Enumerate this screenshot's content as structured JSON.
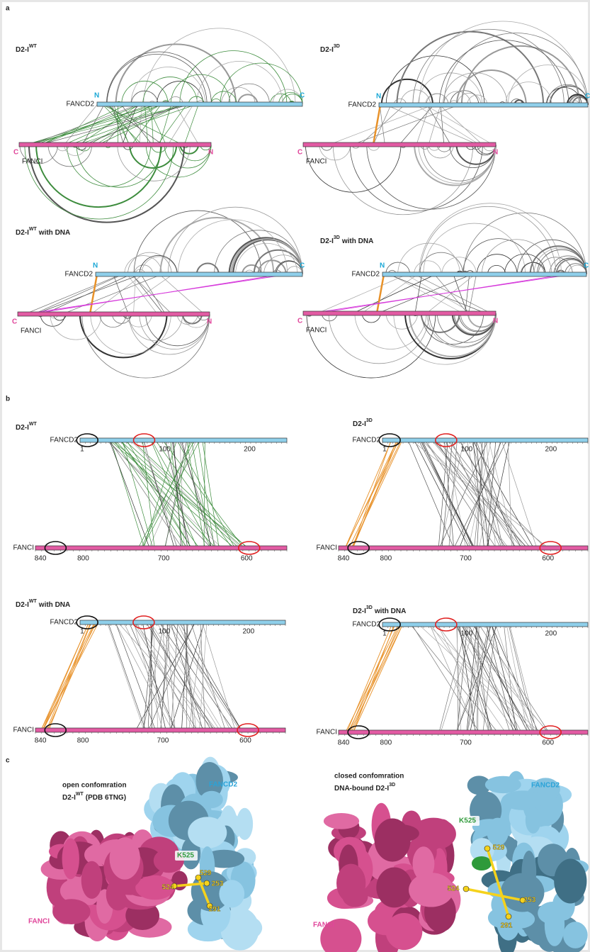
{
  "panel_labels": [
    "a",
    "b",
    "c"
  ],
  "panel_a": [
    {
      "title": "D2-I",
      "title_sup": "WT",
      "fancd2": "FANCD2",
      "fanci": "FANCI",
      "d2_n": "N",
      "d2_c": "C",
      "fi_c": "C",
      "fi_n": "N"
    },
    {
      "title": "D2-I",
      "title_sup": "3D",
      "fancd2": "FANCD2",
      "fanci": "FANCI",
      "d2_n": "N",
      "d2_c": "C",
      "fi_c": "C",
      "fi_n": "N"
    },
    {
      "title": "D2-I",
      "title_sup": "WT",
      "title_suffix": "with DNA",
      "fancd2": "FANCD2",
      "fanci": "FANCI",
      "d2_n": "N",
      "d2_c": "C",
      "fi_c": "C",
      "fi_n": "N"
    },
    {
      "title": "D2-I",
      "title_sup": "3D",
      "title_suffix": "with DNA",
      "fancd2": "FANCD2",
      "fanci": "FANCI",
      "d2_n": "N",
      "d2_c": "C",
      "fi_c": "C",
      "fi_n": "N"
    }
  ],
  "panel_b": [
    {
      "title": "D2-I",
      "title_sup": "WT",
      "fancd2": "FANCD2",
      "fanci": "FANCI",
      "d2_ticks": [
        "1",
        "100",
        "200"
      ],
      "fi_ticks": [
        "840",
        "800",
        "700",
        "600"
      ]
    },
    {
      "title": "D2-I",
      "title_sup": "3D",
      "fancd2": "FANCD2",
      "fanci": "FANCI",
      "d2_ticks": [
        "1",
        "100",
        "200"
      ],
      "fi_ticks": [
        "840",
        "800",
        "700",
        "600"
      ]
    },
    {
      "title": "D2-I",
      "title_sup": "WT",
      "title_suffix": "with DNA",
      "fancd2": "FANCD2",
      "fanci": "FANCI",
      "d2_ticks": [
        "1",
        "100",
        "200"
      ],
      "fi_ticks": [
        "840",
        "800",
        "700",
        "600"
      ]
    },
    {
      "title": "D2-I",
      "title_sup": "3D",
      "title_suffix": "with DNA",
      "fancd2": "FANCD2",
      "fanci": "FANCI",
      "d2_ticks": [
        "1",
        "100",
        "200"
      ],
      "fi_ticks": [
        "840",
        "800",
        "700",
        "600"
      ]
    }
  ],
  "panel_c": [
    {
      "title_line1": "open confomration",
      "title_line2": "D2-I",
      "title_sup": "WT",
      "title_suffix": "(PDB 6TNG)",
      "fancd2": "FANCD2",
      "fanci": "FANCI",
      "residues": [
        "K525",
        "529",
        "524",
        "253",
        "291"
      ]
    },
    {
      "title_line1": "closed confomration",
      "title_line2": "DNA-bound D2-I",
      "title_sup": "3D",
      "fancd2": "FANCD2",
      "fanci": "FANCI",
      "residues": [
        "K525",
        "529",
        "524",
        "253",
        "291"
      ]
    }
  ]
}
